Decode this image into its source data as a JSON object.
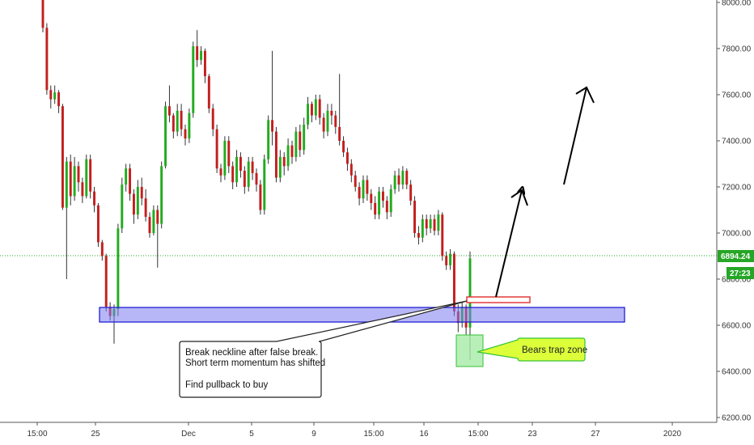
{
  "chart_data": {
    "type": "candlestick",
    "title": "",
    "ylim": [
      6200,
      8000
    ],
    "y_ticks": [
      "6200.00",
      "6400.00",
      "6600.00",
      "6800.00",
      "7000.00",
      "7200.00",
      "7400.00",
      "7600.00",
      "7800.00",
      "8000.00"
    ],
    "x_ticks": [
      "15:00",
      "25",
      "Dec",
      "5",
      "9",
      "15:00",
      "16",
      "15:00",
      "23",
      "27",
      "2020"
    ],
    "grid": false,
    "last_price": "6894.24",
    "countdown": "27:23",
    "colors": {
      "up": "#22ab1f",
      "down": "#c21f1f",
      "zone_fill": "#7c7cf0",
      "zone_stroke": "#2121d6",
      "trap_fill": "#a6eba6",
      "trap_stroke": "#36c236",
      "callout_fill": "#dcff3a",
      "price_line": "#26a626"
    },
    "candles": [
      [
        8040,
        8060,
        7870,
        7890
      ],
      [
        7890,
        7910,
        7600,
        7620
      ],
      [
        7620,
        7640,
        7540,
        7580
      ],
      [
        7580,
        7640,
        7560,
        7610
      ],
      [
        7610,
        7620,
        7520,
        7550
      ],
      [
        7550,
        7560,
        7100,
        7110
      ],
      [
        7110,
        7330,
        6800,
        7310
      ],
      [
        7310,
        7340,
        7120,
        7160
      ],
      [
        7160,
        7330,
        7140,
        7290
      ],
      [
        7290,
        7310,
        7180,
        7220
      ],
      [
        7220,
        7240,
        7130,
        7160
      ],
      [
        7160,
        7340,
        7150,
        7320
      ],
      [
        7320,
        7340,
        7150,
        7180
      ],
      [
        7180,
        7200,
        7090,
        7120
      ],
      [
        7120,
        7130,
        6940,
        6960
      ],
      [
        6960,
        6970,
        6880,
        6900
      ],
      [
        6900,
        6910,
        6660,
        6680
      ],
      [
        6680,
        6700,
        6620,
        6640
      ],
      [
        6640,
        6690,
        6520,
        6670
      ],
      [
        6670,
        7040,
        6640,
        7020
      ],
      [
        7020,
        7240,
        7000,
        7210
      ],
      [
        7210,
        7300,
        7180,
        7280
      ],
      [
        7280,
        7300,
        7140,
        7170
      ],
      [
        7170,
        7190,
        7040,
        7080
      ],
      [
        7080,
        7230,
        7060,
        7200
      ],
      [
        7200,
        7240,
        7120,
        7150
      ],
      [
        7150,
        7190,
        7050,
        7070
      ],
      [
        7070,
        7090,
        6980,
        7000
      ],
      [
        7000,
        7120,
        6990,
        7100
      ],
      [
        7100,
        7120,
        6850,
        7040
      ],
      [
        7040,
        7310,
        7020,
        7290
      ],
      [
        7290,
        7570,
        7280,
        7550
      ],
      [
        7550,
        7640,
        7480,
        7510
      ],
      [
        7510,
        7520,
        7410,
        7440
      ],
      [
        7440,
        7560,
        7420,
        7530
      ],
      [
        7530,
        7560,
        7420,
        7450
      ],
      [
        7450,
        7470,
        7380,
        7410
      ],
      [
        7410,
        7540,
        7390,
        7520
      ],
      [
        7520,
        7830,
        7500,
        7810
      ],
      [
        7810,
        7880,
        7720,
        7750
      ],
      [
        7750,
        7810,
        7730,
        7790
      ],
      [
        7790,
        7800,
        7650,
        7680
      ],
      [
        7680,
        7690,
        7520,
        7540
      ],
      [
        7540,
        7560,
        7420,
        7450
      ],
      [
        7450,
        7470,
        7260,
        7280
      ],
      [
        7280,
        7300,
        7220,
        7250
      ],
      [
        7250,
        7420,
        7230,
        7400
      ],
      [
        7400,
        7420,
        7260,
        7290
      ],
      [
        7290,
        7310,
        7190,
        7220
      ],
      [
        7220,
        7360,
        7200,
        7330
      ],
      [
        7330,
        7350,
        7240,
        7270
      ],
      [
        7270,
        7290,
        7170,
        7200
      ],
      [
        7200,
        7330,
        7180,
        7310
      ],
      [
        7310,
        7330,
        7230,
        7260
      ],
      [
        7260,
        7280,
        7180,
        7210
      ],
      [
        7210,
        7230,
        7080,
        7100
      ],
      [
        7100,
        7340,
        7080,
        7320
      ],
      [
        7320,
        7510,
        7300,
        7490
      ],
      [
        7490,
        7790,
        7380,
        7440
      ],
      [
        7440,
        7460,
        7220,
        7240
      ],
      [
        7240,
        7360,
        7220,
        7330
      ],
      [
        7330,
        7350,
        7250,
        7290
      ],
      [
        7290,
        7410,
        7270,
        7380
      ],
      [
        7380,
        7400,
        7300,
        7330
      ],
      [
        7330,
        7460,
        7310,
        7440
      ],
      [
        7440,
        7470,
        7330,
        7360
      ],
      [
        7360,
        7500,
        7340,
        7470
      ],
      [
        7470,
        7590,
        7450,
        7560
      ],
      [
        7560,
        7570,
        7480,
        7510
      ],
      [
        7510,
        7600,
        7490,
        7580
      ],
      [
        7580,
        7600,
        7470,
        7500
      ],
      [
        7500,
        7520,
        7410,
        7440
      ],
      [
        7440,
        7560,
        7420,
        7530
      ],
      [
        7530,
        7560,
        7470,
        7510
      ],
      [
        7510,
        7530,
        7430,
        7460
      ],
      [
        7460,
        7690,
        7380,
        7400
      ],
      [
        7400,
        7420,
        7330,
        7350
      ],
      [
        7350,
        7370,
        7270,
        7300
      ],
      [
        7300,
        7320,
        7220,
        7250
      ],
      [
        7250,
        7270,
        7180,
        7200
      ],
      [
        7200,
        7220,
        7120,
        7150
      ],
      [
        7150,
        7250,
        7130,
        7230
      ],
      [
        7230,
        7250,
        7140,
        7170
      ],
      [
        7170,
        7190,
        7100,
        7130
      ],
      [
        7130,
        7160,
        7060,
        7080
      ],
      [
        7080,
        7200,
        7060,
        7180
      ],
      [
        7180,
        7200,
        7110,
        7140
      ],
      [
        7140,
        7160,
        7060,
        7090
      ],
      [
        7090,
        7210,
        7070,
        7190
      ],
      [
        7190,
        7270,
        7170,
        7250
      ],
      [
        7250,
        7280,
        7180,
        7210
      ],
      [
        7210,
        7290,
        7190,
        7270
      ],
      [
        7270,
        7280,
        7190,
        7210
      ],
      [
        7210,
        7230,
        7120,
        7140
      ],
      [
        7140,
        7160,
        6980,
        7000
      ],
      [
        7000,
        7030,
        6950,
        6980
      ],
      [
        6980,
        7080,
        6960,
        7060
      ],
      [
        7060,
        7080,
        6990,
        7020
      ],
      [
        7020,
        7080,
        7000,
        7060
      ],
      [
        7060,
        7080,
        6990,
        7010
      ],
      [
        7010,
        7100,
        6990,
        7080
      ],
      [
        7080,
        7090,
        6880,
        6900
      ],
      [
        6900,
        6920,
        6840,
        6860
      ],
      [
        6860,
        6930,
        6840,
        6910
      ],
      [
        6910,
        6920,
        6640,
        6660
      ],
      [
        6660,
        6690,
        6570,
        6610
      ],
      [
        6610,
        6700,
        6590,
        6680
      ],
      [
        6680,
        6690,
        6560,
        6590
      ],
      [
        6590,
        6920,
        6450,
        6890
      ]
    ],
    "annotations": {
      "support_zone": {
        "y_top": 6670,
        "y_bottom": 6610
      },
      "neckline_box": {
        "y_top": 6710,
        "y_bottom": 6690
      },
      "trap_zone": {
        "y_top": 6550,
        "y_bottom": 6420
      },
      "note_lines": [
        "Break neckline after false break.",
        "Short term momentum has shifted",
        "",
        "Find pullback to buy"
      ],
      "trap_label": "Bears trap zone"
    }
  }
}
